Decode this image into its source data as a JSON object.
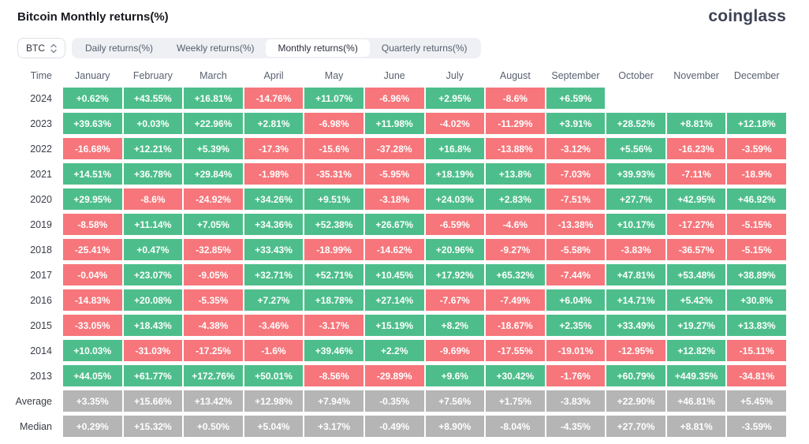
{
  "header": {
    "title": "Bitcoin Monthly returns(%)",
    "logo_text": "coinglass"
  },
  "controls": {
    "coin_select": {
      "value": "BTC"
    },
    "tabs": [
      {
        "label": "Daily returns(%)",
        "active": false
      },
      {
        "label": "Weekly returns(%)",
        "active": false
      },
      {
        "label": "Monthly returns(%)",
        "active": true
      },
      {
        "label": "Quarterly returns(%)",
        "active": false
      }
    ]
  },
  "colors": {
    "positive": "#4dbe8b",
    "negative": "#f6767b",
    "neutral": "#b5b5b5",
    "cell_text": "#ffffff"
  },
  "chart_data": {
    "type": "heatmap",
    "title": "Bitcoin Monthly returns(%)",
    "columns": [
      "Time",
      "January",
      "February",
      "March",
      "April",
      "May",
      "June",
      "July",
      "August",
      "September",
      "October",
      "November",
      "December"
    ],
    "color_rule": "positive values green, negative values red, summary rows gray, missing months blank",
    "rows": [
      {
        "label": "2024",
        "summary": false,
        "values": [
          "+0.62%",
          "+43.55%",
          "+16.81%",
          "-14.76%",
          "+11.07%",
          "-6.96%",
          "+2.95%",
          "-8.6%",
          "+6.59%",
          null,
          null,
          null
        ]
      },
      {
        "label": "2023",
        "summary": false,
        "values": [
          "+39.63%",
          "+0.03%",
          "+22.96%",
          "+2.81%",
          "-6.98%",
          "+11.98%",
          "-4.02%",
          "-11.29%",
          "+3.91%",
          "+28.52%",
          "+8.81%",
          "+12.18%"
        ]
      },
      {
        "label": "2022",
        "summary": false,
        "values": [
          "-16.68%",
          "+12.21%",
          "+5.39%",
          "-17.3%",
          "-15.6%",
          "-37.28%",
          "+16.8%",
          "-13.88%",
          "-3.12%",
          "+5.56%",
          "-16.23%",
          "-3.59%"
        ]
      },
      {
        "label": "2021",
        "summary": false,
        "values": [
          "+14.51%",
          "+36.78%",
          "+29.84%",
          "-1.98%",
          "-35.31%",
          "-5.95%",
          "+18.19%",
          "+13.8%",
          "-7.03%",
          "+39.93%",
          "-7.11%",
          "-18.9%"
        ]
      },
      {
        "label": "2020",
        "summary": false,
        "values": [
          "+29.95%",
          "-8.6%",
          "-24.92%",
          "+34.26%",
          "+9.51%",
          "-3.18%",
          "+24.03%",
          "+2.83%",
          "-7.51%",
          "+27.7%",
          "+42.95%",
          "+46.92%"
        ]
      },
      {
        "label": "2019",
        "summary": false,
        "values": [
          "-8.58%",
          "+11.14%",
          "+7.05%",
          "+34.36%",
          "+52.38%",
          "+26.67%",
          "-6.59%",
          "-4.6%",
          "-13.38%",
          "+10.17%",
          "-17.27%",
          "-5.15%"
        ]
      },
      {
        "label": "2018",
        "summary": false,
        "values": [
          "-25.41%",
          "+0.47%",
          "-32.85%",
          "+33.43%",
          "-18.99%",
          "-14.62%",
          "+20.96%",
          "-9.27%",
          "-5.58%",
          "-3.83%",
          "-36.57%",
          "-5.15%"
        ]
      },
      {
        "label": "2017",
        "summary": false,
        "values": [
          "-0.04%",
          "+23.07%",
          "-9.05%",
          "+32.71%",
          "+52.71%",
          "+10.45%",
          "+17.92%",
          "+65.32%",
          "-7.44%",
          "+47.81%",
          "+53.48%",
          "+38.89%"
        ]
      },
      {
        "label": "2016",
        "summary": false,
        "values": [
          "-14.83%",
          "+20.08%",
          "-5.35%",
          "+7.27%",
          "+18.78%",
          "+27.14%",
          "-7.67%",
          "-7.49%",
          "+6.04%",
          "+14.71%",
          "+5.42%",
          "+30.8%"
        ]
      },
      {
        "label": "2015",
        "summary": false,
        "values": [
          "-33.05%",
          "+18.43%",
          "-4.38%",
          "-3.46%",
          "-3.17%",
          "+15.19%",
          "+8.2%",
          "-18.67%",
          "+2.35%",
          "+33.49%",
          "+19.27%",
          "+13.83%"
        ]
      },
      {
        "label": "2014",
        "summary": false,
        "values": [
          "+10.03%",
          "-31.03%",
          "-17.25%",
          "-1.6%",
          "+39.46%",
          "+2.2%",
          "-9.69%",
          "-17.55%",
          "-19.01%",
          "-12.95%",
          "+12.82%",
          "-15.11%"
        ]
      },
      {
        "label": "2013",
        "summary": false,
        "values": [
          "+44.05%",
          "+61.77%",
          "+172.76%",
          "+50.01%",
          "-8.56%",
          "-29.89%",
          "+9.6%",
          "+30.42%",
          "-1.76%",
          "+60.79%",
          "+449.35%",
          "-34.81%"
        ]
      },
      {
        "label": "Average",
        "summary": true,
        "values": [
          "+3.35%",
          "+15.66%",
          "+13.42%",
          "+12.98%",
          "+7.94%",
          "-0.35%",
          "+7.56%",
          "+1.75%",
          "-3.83%",
          "+22.90%",
          "+46.81%",
          "+5.45%"
        ]
      },
      {
        "label": "Median",
        "summary": true,
        "values": [
          "+0.29%",
          "+15.32%",
          "+0.50%",
          "+5.04%",
          "+3.17%",
          "-0.49%",
          "+8.90%",
          "-8.04%",
          "-4.35%",
          "+27.70%",
          "+8.81%",
          "-3.59%"
        ]
      }
    ]
  }
}
